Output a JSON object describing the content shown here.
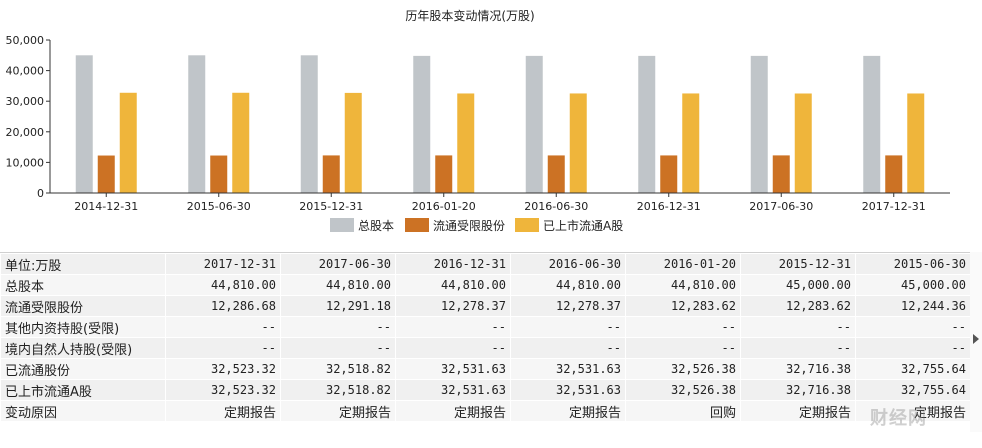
{
  "colors": {
    "total": "#c0c5c9",
    "restricted": "#cc7224",
    "listed": "#efb53b"
  },
  "chart_data": {
    "type": "bar",
    "title": "历年股本变动情况(万股)",
    "categories": [
      "2014-12-31",
      "2015-06-30",
      "2015-12-31",
      "2016-01-20",
      "2016-06-30",
      "2016-12-31",
      "2017-06-30",
      "2017-12-31"
    ],
    "series": [
      {
        "name": "总股本",
        "values": [
          45000,
          45000,
          45000,
          44810,
          44810,
          44810,
          44810,
          44810
        ]
      },
      {
        "name": "流通受限股份",
        "values": [
          12244,
          12244.36,
          12283.62,
          12283.62,
          12278.37,
          12278.37,
          12291.18,
          12286.68
        ]
      },
      {
        "name": "已上市流通A股",
        "values": [
          32756,
          32755.64,
          32716.38,
          32526.38,
          32531.63,
          32531.63,
          32518.82,
          32523.32
        ]
      }
    ],
    "yticks": [
      "50,000",
      "40,000",
      "30,000",
      "20,000",
      "10,000",
      "0"
    ],
    "ylim": [
      0,
      50000
    ],
    "legend_position": "bottom-center",
    "grid": false
  },
  "table": {
    "header": [
      "单位:万股",
      "2017-12-31",
      "2017-06-30",
      "2016-12-31",
      "2016-06-30",
      "2016-01-20",
      "2015-12-31",
      "2015-06-30"
    ],
    "rows": [
      [
        "总股本",
        "44,810.00",
        "44,810.00",
        "44,810.00",
        "44,810.00",
        "44,810.00",
        "45,000.00",
        "45,000.00"
      ],
      [
        "流通受限股份",
        "12,286.68",
        "12,291.18",
        "12,278.37",
        "12,278.37",
        "12,283.62",
        "12,283.62",
        "12,244.36"
      ],
      [
        "其他内资持股(受限)",
        "--",
        "--",
        "--",
        "--",
        "--",
        "--",
        "--"
      ],
      [
        "境内自然人持股(受限)",
        "--",
        "--",
        "--",
        "--",
        "--",
        "--",
        "--"
      ],
      [
        "已流通股份",
        "32,523.32",
        "32,518.82",
        "32,531.63",
        "32,531.63",
        "32,526.38",
        "32,716.38",
        "32,755.64"
      ],
      [
        "已上市流通A股",
        "32,523.32",
        "32,518.82",
        "32,531.63",
        "32,531.63",
        "32,526.38",
        "32,716.38",
        "32,755.64"
      ],
      [
        "变动原因",
        "定期报告",
        "定期报告",
        "定期报告",
        "定期报告",
        "回购",
        "定期报告",
        "定期报告"
      ]
    ]
  },
  "watermark": "财经网"
}
